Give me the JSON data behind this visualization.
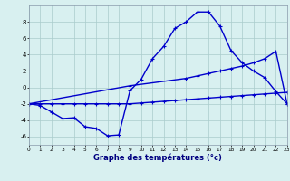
{
  "line1_x": [
    0,
    1,
    2,
    3,
    4,
    5,
    6,
    7,
    8,
    9,
    10,
    11,
    12,
    13,
    14,
    15,
    16,
    17,
    18,
    19,
    20,
    21,
    22,
    23
  ],
  "line1_y": [
    -2.0,
    -2.2,
    -3.0,
    -3.8,
    -3.7,
    -4.8,
    -5.0,
    -5.9,
    -5.8,
    -0.4,
    1.0,
    3.5,
    5.0,
    7.2,
    8.0,
    9.2,
    9.2,
    7.5,
    4.5,
    3.0,
    2.0,
    1.2,
    -0.5,
    -2.0
  ],
  "line2_x": [
    0,
    9,
    14,
    15,
    16,
    17,
    18,
    19,
    20,
    21,
    22,
    23
  ],
  "line2_y": [
    -2.0,
    0.2,
    1.1,
    1.4,
    1.7,
    2.0,
    2.3,
    2.6,
    3.0,
    3.5,
    4.4,
    -2.0
  ],
  "line3_x": [
    0,
    1,
    2,
    3,
    4,
    5,
    6,
    7,
    8,
    9,
    10,
    11,
    12,
    13,
    14,
    15,
    16,
    17,
    18,
    19,
    20,
    21,
    22,
    23
  ],
  "line3_y": [
    -2.0,
    -2.0,
    -2.0,
    -2.0,
    -2.0,
    -2.0,
    -2.0,
    -2.0,
    -2.0,
    -2.0,
    -1.9,
    -1.8,
    -1.7,
    -1.6,
    -1.5,
    -1.4,
    -1.3,
    -1.2,
    -1.1,
    -1.0,
    -0.9,
    -0.8,
    -0.7,
    -0.6
  ],
  "line_color": "#0000cc",
  "bg_color": "#d8f0f0",
  "grid_color": "#aacccc",
  "xlabel": "Graphe des températures (°c)",
  "xlim": [
    0,
    23
  ],
  "ylim": [
    -7,
    10
  ],
  "yticks": [
    -6,
    -4,
    -2,
    0,
    2,
    4,
    6,
    8
  ],
  "xticks": [
    0,
    1,
    2,
    3,
    4,
    5,
    6,
    7,
    8,
    9,
    10,
    11,
    12,
    13,
    14,
    15,
    16,
    17,
    18,
    19,
    20,
    21,
    22,
    23
  ],
  "marker": "+",
  "markersize": 3,
  "linewidth": 1.0,
  "tick_fontsize_x": 4.2,
  "tick_fontsize_y": 5.0,
  "xlabel_fontsize": 6.0
}
